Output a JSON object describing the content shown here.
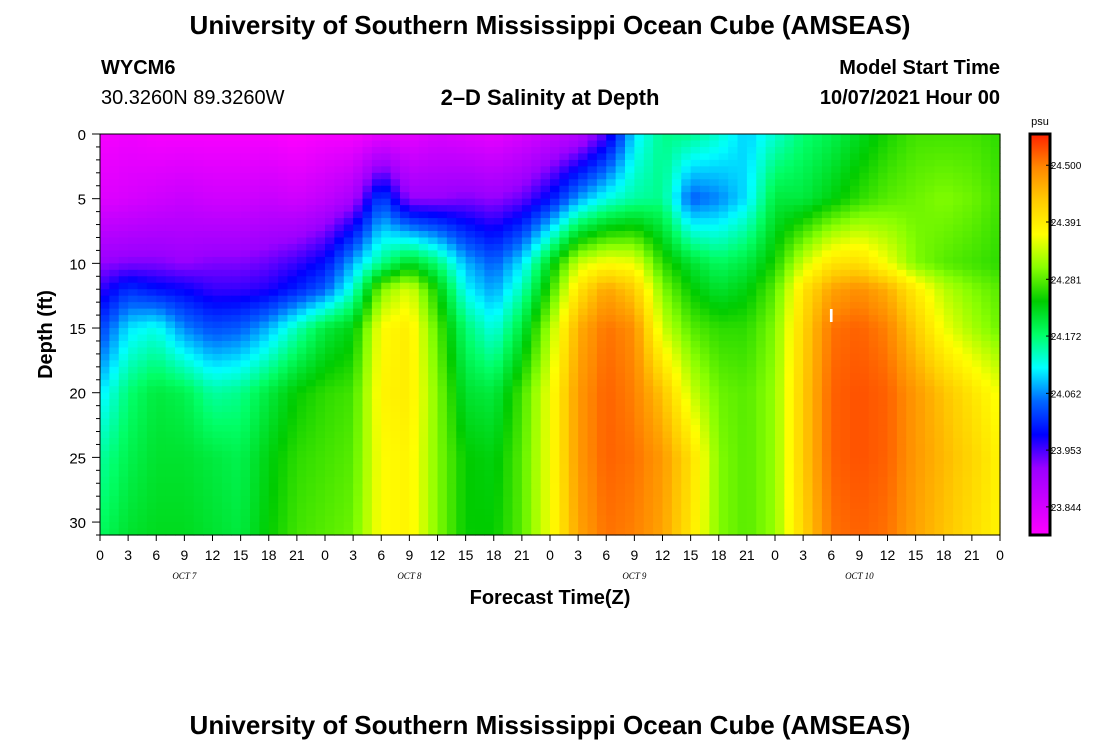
{
  "header": {
    "title_top": "University of Southern Mississippi Ocean Cube (AMSEAS)",
    "title_bottom": "University of Southern Mississippi Ocean Cube (AMSEAS)",
    "station": "WYCM6",
    "coords": "30.3260N  89.3260W",
    "plot_title": "2–D Salinity at Depth",
    "model_start_label": "Model Start Time",
    "model_start_value": "10/07/2021 Hour 00"
  },
  "chart_data": {
    "type": "heatmap",
    "title": "2–D Salinity at Depth",
    "xlabel": "Forecast Time(Z)",
    "ylabel": "Depth (ft)",
    "x_range_hours": [
      0,
      96
    ],
    "y_range_ft": [
      0,
      31
    ],
    "x_tick_labels": [
      "0",
      "3",
      "6",
      "9",
      "12",
      "15",
      "18",
      "21",
      "0",
      "3",
      "6",
      "9",
      "12",
      "15",
      "18",
      "21",
      "0",
      "3",
      "6",
      "9",
      "12",
      "15",
      "18",
      "21",
      "0",
      "3",
      "6",
      "9",
      "12",
      "15",
      "18",
      "21",
      "0"
    ],
    "day_labels": [
      "OCT 7",
      "OCT 8",
      "OCT 9",
      "OCT 10"
    ],
    "y_ticks": [
      0,
      5,
      10,
      15,
      20,
      25,
      30
    ],
    "colorbar": {
      "unit": "psu",
      "range": [
        23.79,
        24.56
      ],
      "tick_values": [
        "24.500",
        "24.391",
        "24.281",
        "24.172",
        "24.062",
        "23.953",
        "23.844"
      ]
    },
    "field": {
      "depths_ft": [
        0,
        5,
        10,
        12,
        15,
        20,
        25,
        31
      ],
      "times_h": [
        0,
        3,
        6,
        9,
        12,
        15,
        18,
        21,
        24,
        27,
        30,
        33,
        36,
        39,
        42,
        45,
        48,
        51,
        54,
        57,
        60,
        63,
        66,
        69,
        72,
        75,
        78,
        81,
        84,
        87,
        90,
        93,
        96
      ],
      "salinity_psu": [
        [
          23.8,
          23.81,
          23.8,
          23.8,
          23.8,
          23.8,
          23.8,
          23.79,
          23.8,
          23.8,
          23.82,
          23.82,
          23.84,
          23.83,
          23.82,
          23.84,
          23.86,
          23.88,
          23.95,
          24.1,
          24.16,
          24.16,
          24.13,
          24.09,
          24.13,
          24.17,
          24.19,
          24.22,
          24.25,
          24.27,
          24.27,
          24.27,
          24.26
        ],
        [
          23.83,
          23.84,
          23.85,
          23.86,
          23.85,
          23.85,
          23.86,
          23.85,
          23.87,
          23.9,
          24.03,
          23.92,
          23.92,
          23.93,
          23.92,
          23.94,
          23.99,
          24.07,
          24.12,
          24.15,
          24.16,
          24.04,
          24.06,
          24.1,
          24.2,
          24.2,
          24.23,
          24.26,
          24.28,
          24.29,
          24.3,
          24.29,
          24.27
        ],
        [
          23.92,
          23.93,
          23.93,
          23.92,
          23.93,
          23.93,
          23.94,
          23.96,
          23.99,
          24.08,
          24.16,
          24.22,
          24.17,
          24.08,
          24.04,
          24.1,
          24.22,
          24.34,
          24.37,
          24.36,
          24.26,
          24.21,
          24.18,
          24.2,
          24.25,
          24.34,
          24.4,
          24.41,
          24.36,
          24.3,
          24.28,
          24.27,
          24.26
        ],
        [
          23.96,
          24.01,
          23.99,
          23.98,
          23.96,
          23.96,
          23.97,
          24.0,
          24.04,
          24.13,
          24.3,
          24.35,
          24.24,
          24.11,
          24.07,
          24.14,
          24.26,
          24.4,
          24.47,
          24.43,
          24.3,
          24.24,
          24.21,
          24.23,
          24.28,
          24.4,
          24.47,
          24.49,
          24.46,
          24.39,
          24.33,
          24.3,
          24.28
        ],
        [
          24.02,
          24.1,
          24.12,
          24.06,
          24.03,
          24.04,
          24.08,
          24.14,
          24.2,
          24.23,
          24.37,
          24.39,
          24.28,
          24.17,
          24.12,
          24.2,
          24.32,
          24.46,
          24.51,
          24.49,
          24.34,
          24.28,
          24.26,
          24.26,
          24.3,
          24.42,
          24.51,
          24.52,
          24.5,
          24.43,
          24.36,
          24.32,
          24.29
        ],
        [
          24.1,
          24.17,
          24.2,
          24.19,
          24.15,
          24.16,
          24.2,
          24.24,
          24.26,
          24.27,
          24.38,
          24.39,
          24.3,
          24.21,
          24.2,
          24.27,
          24.36,
          24.48,
          24.52,
          24.5,
          24.44,
          24.34,
          24.29,
          24.28,
          24.31,
          24.43,
          24.52,
          24.53,
          24.52,
          24.48,
          24.44,
          24.4,
          24.36
        ],
        [
          24.15,
          24.19,
          24.21,
          24.21,
          24.2,
          24.19,
          24.23,
          24.26,
          24.27,
          24.28,
          24.37,
          24.38,
          24.3,
          24.24,
          24.23,
          24.28,
          24.36,
          24.48,
          24.52,
          24.51,
          24.48,
          24.41,
          24.3,
          24.28,
          24.31,
          24.43,
          24.52,
          24.53,
          24.52,
          24.48,
          24.45,
          24.42,
          24.38
        ],
        [
          24.18,
          24.21,
          24.22,
          24.22,
          24.21,
          24.2,
          24.24,
          24.27,
          24.28,
          24.29,
          24.37,
          24.38,
          24.3,
          24.24,
          24.24,
          24.28,
          24.36,
          24.47,
          24.51,
          24.5,
          24.47,
          24.4,
          24.3,
          24.28,
          24.31,
          24.42,
          24.51,
          24.52,
          24.51,
          24.47,
          24.44,
          24.41,
          24.38
        ]
      ]
    },
    "annotation": "I"
  },
  "colors": {
    "colormap": [
      "#ff00ff",
      "#cc00ff",
      "#9a00ff",
      "#0000ff",
      "#0066ff",
      "#00ffff",
      "#00ff66",
      "#00cc00",
      "#88ff00",
      "#ffff00",
      "#ffcc00",
      "#ff8800",
      "#ff2200"
    ]
  }
}
